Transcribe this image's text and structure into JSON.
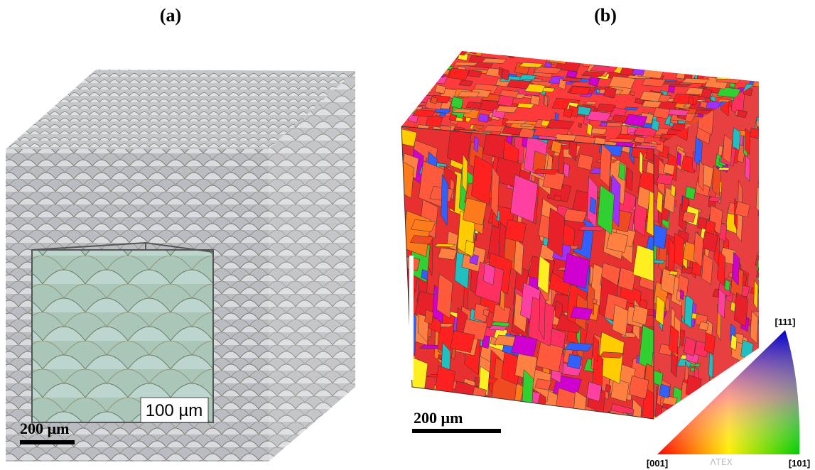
{
  "panels": [
    {
      "label": "(a)",
      "scale_bar": "200 µm",
      "inset_scale_bar": "100 µm"
    },
    {
      "label": "(b)",
      "scale_bar": "200 µm",
      "legend": {
        "top": "[111]",
        "left": "[001]",
        "right": "[101]",
        "watermark": "ΛTEX"
      }
    }
  ]
}
